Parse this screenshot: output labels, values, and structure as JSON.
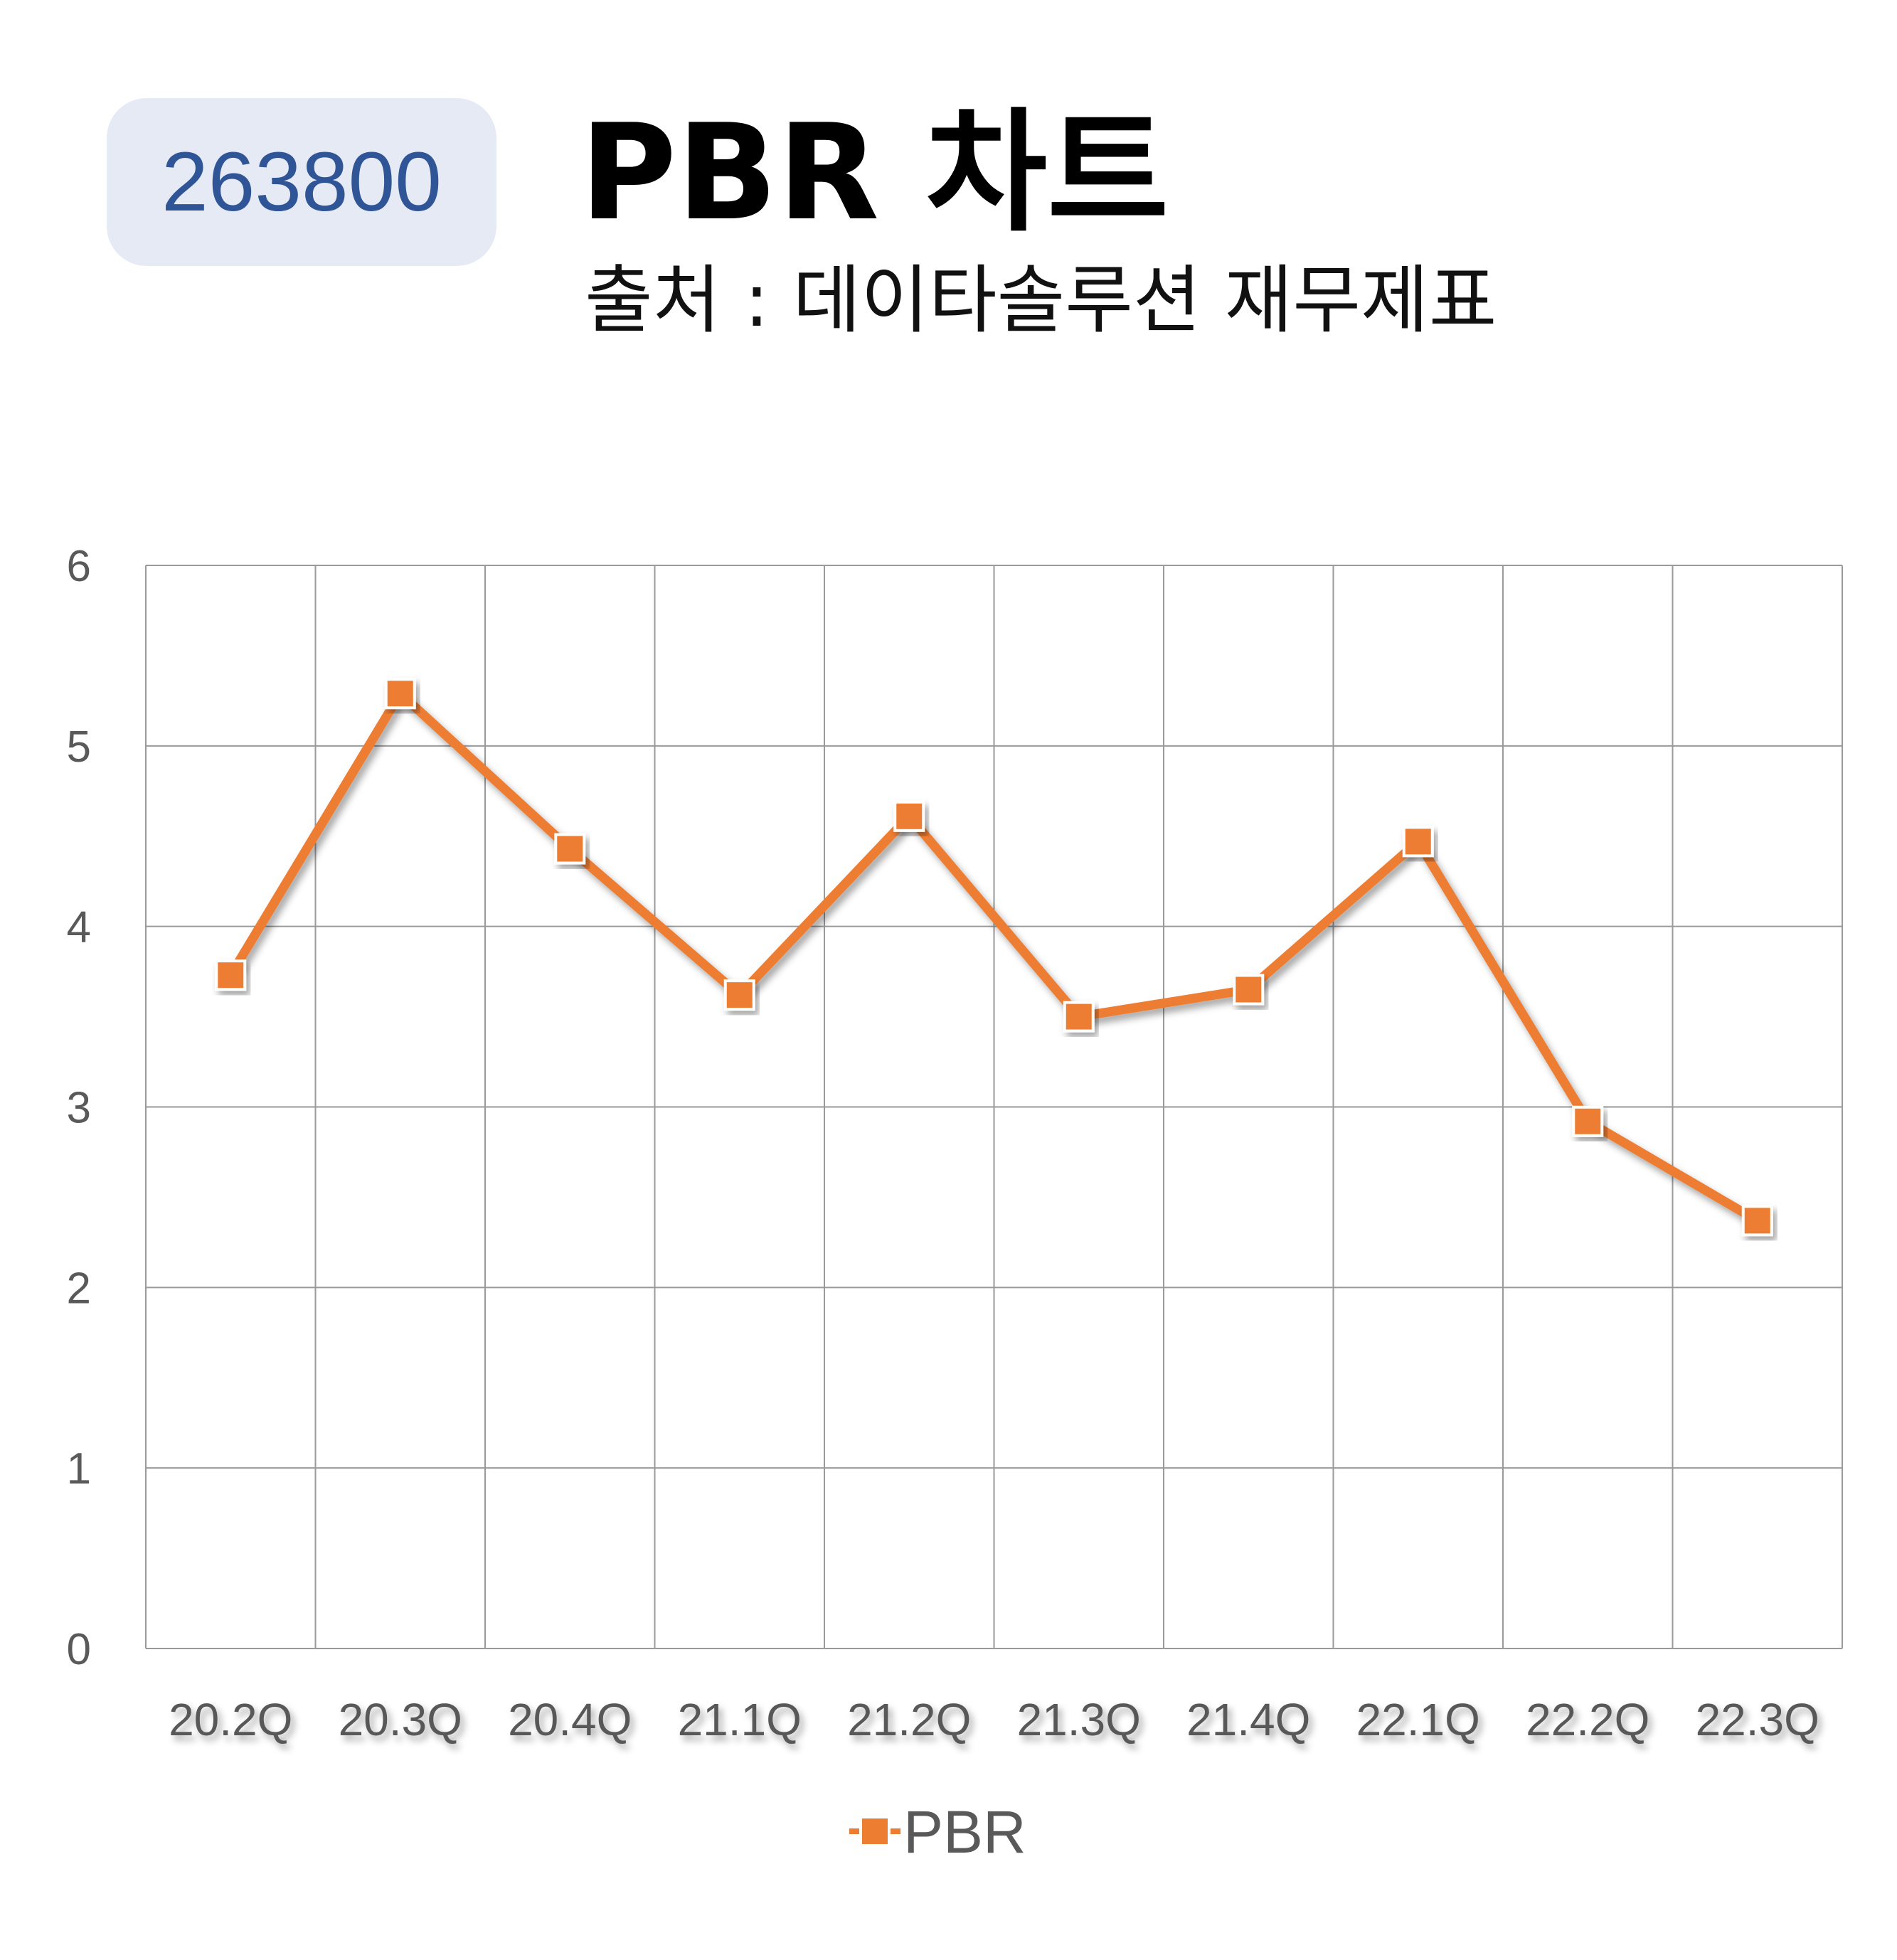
{
  "header": {
    "code": "263800",
    "title": "PBR 차트",
    "subtitle": "출처 : 데이타솔루션 재무제표"
  },
  "colors": {
    "badge_bg": "#e5eaf5",
    "badge_text": "#2f5597",
    "series": "#ed7d31",
    "grid": "#9a9a9a",
    "tick_text": "#595959"
  },
  "chart_data": {
    "type": "line",
    "categories": [
      "20.2Q",
      "20.3Q",
      "20.4Q",
      "21.1Q",
      "21.2Q",
      "21.3Q",
      "21.4Q",
      "22.1Q",
      "22.2Q",
      "22.3Q"
    ],
    "series": [
      {
        "name": "PBR",
        "values": [
          3.73,
          5.29,
          4.43,
          3.62,
          4.61,
          3.5,
          3.65,
          4.47,
          2.92,
          2.37
        ]
      }
    ],
    "ylim": [
      0,
      6
    ],
    "yticks": [
      0,
      1,
      2,
      3,
      4,
      5,
      6
    ],
    "grid": true,
    "legend": "bottom-center",
    "marker": "square"
  }
}
